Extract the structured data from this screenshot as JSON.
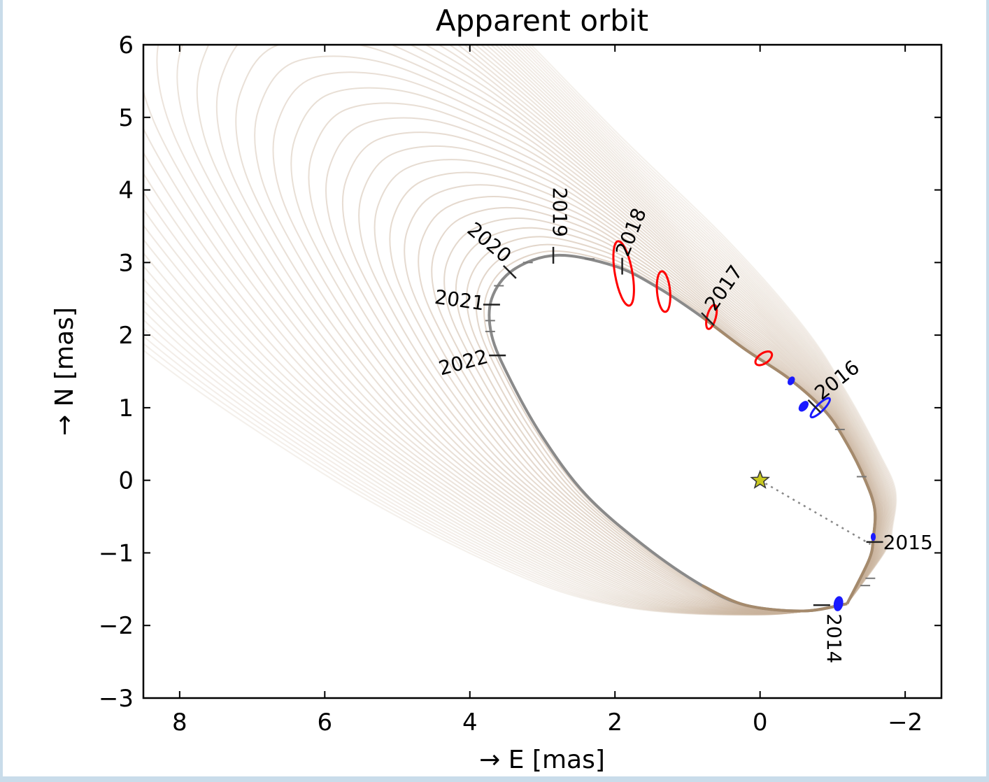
{
  "chart_data": {
    "type": "line",
    "title": "Apparent orbit",
    "xlabel": "→ E [mas]",
    "ylabel": "→ N [mas]",
    "xlim": [
      8.5,
      -2.5
    ],
    "ylim": [
      -3,
      6
    ],
    "x_reversed": true,
    "xticks": [
      {
        "value": 8,
        "label": "8"
      },
      {
        "value": 6,
        "label": "6"
      },
      {
        "value": 4,
        "label": "4"
      },
      {
        "value": 2,
        "label": "2"
      },
      {
        "value": 0,
        "label": "0"
      },
      {
        "value": -2,
        "label": "−2"
      }
    ],
    "yticks": [
      {
        "value": 6,
        "label": "6"
      },
      {
        "value": 5,
        "label": "5"
      },
      {
        "value": 4,
        "label": "4"
      },
      {
        "value": 3,
        "label": "3"
      },
      {
        "value": 2,
        "label": "2"
      },
      {
        "value": 1,
        "label": "1"
      },
      {
        "value": 0,
        "label": "0"
      },
      {
        "value": -1,
        "label": "−1"
      },
      {
        "value": -2,
        "label": "−2"
      },
      {
        "value": -3,
        "label": "−3"
      }
    ],
    "grid": false,
    "best_orbit": {
      "color": "#8a8a8a",
      "future_color": "#a58a6c",
      "points": [
        [
          -1.2,
          -1.7
        ],
        [
          -1.5,
          -1.1
        ],
        [
          -1.56,
          -0.8
        ],
        [
          -1.58,
          -0.4
        ],
        [
          -1.45,
          0.0
        ],
        [
          -1.2,
          0.5
        ],
        [
          -0.9,
          0.95
        ],
        [
          -0.4,
          1.4
        ],
        [
          0.2,
          1.8
        ],
        [
          0.8,
          2.25
        ],
        [
          1.4,
          2.65
        ],
        [
          2.0,
          2.95
        ],
        [
          2.8,
          3.1
        ],
        [
          3.4,
          2.9
        ],
        [
          3.7,
          2.5
        ],
        [
          3.7,
          2.0
        ],
        [
          3.45,
          1.4
        ],
        [
          3.0,
          0.6
        ],
        [
          2.4,
          -0.2
        ],
        [
          1.6,
          -0.9
        ],
        [
          0.8,
          -1.45
        ],
        [
          0.2,
          -1.72
        ],
        [
          -0.6,
          -1.8
        ],
        [
          -1.2,
          -1.7
        ]
      ]
    },
    "orbit_family_color": "#c9b29c",
    "epoch_labels": [
      {
        "year": "2014",
        "x": -0.85,
        "y": -1.72
      },
      {
        "year": "2015",
        "x": -1.58,
        "y": -0.85
      },
      {
        "year": "2016",
        "x": -0.75,
        "y": 1.02
      },
      {
        "year": "2017",
        "x": 0.72,
        "y": 2.22
      },
      {
        "year": "2018",
        "x": 1.9,
        "y": 2.95
      },
      {
        "year": "2019",
        "x": 2.85,
        "y": 3.1
      },
      {
        "year": "2020",
        "x": 3.45,
        "y": 2.87
      },
      {
        "year": "2021",
        "x": 3.7,
        "y": 2.42
      },
      {
        "year": "2022",
        "x": 3.62,
        "y": 1.72
      }
    ],
    "minor_epoch_ticks": [
      [
        -1.52,
        -1.35
      ],
      [
        -1.4,
        0.05
      ],
      [
        -1.1,
        0.7
      ],
      [
        2.35,
        3.05
      ],
      [
        3.2,
        3.0
      ],
      [
        3.6,
        2.68
      ],
      [
        3.72,
        2.2
      ],
      [
        3.72,
        2.05
      ],
      [
        -1.45,
        -1.45
      ]
    ],
    "red_ellipses": [
      {
        "x": 1.88,
        "y": 2.85,
        "rx": 0.12,
        "ry": 0.45,
        "rotate": -10
      },
      {
        "x": 1.33,
        "y": 2.6,
        "rx": 0.09,
        "ry": 0.28,
        "rotate": -5
      },
      {
        "x": 0.67,
        "y": 2.25,
        "rx": 0.06,
        "ry": 0.17,
        "rotate": 15
      },
      {
        "x": -0.05,
        "y": 1.68,
        "rx": 0.07,
        "ry": 0.13,
        "rotate": 55
      }
    ],
    "blue_ellipses": [
      {
        "x": -0.43,
        "y": 1.37,
        "rx": 0.03,
        "ry": 0.05,
        "rotate": 30
      },
      {
        "x": -0.6,
        "y": 1.02,
        "rx": 0.04,
        "ry": 0.07,
        "rotate": 40
      },
      {
        "x": -0.83,
        "y": 1.0,
        "rx": 0.05,
        "ry": 0.18,
        "rotate": 45
      },
      {
        "x": -1.08,
        "y": -1.7,
        "rx": 0.05,
        "ry": 0.09,
        "rotate": 10
      },
      {
        "x": -1.56,
        "y": -0.78,
        "rx": 0.02,
        "ry": 0.04,
        "rotate": 0
      }
    ],
    "star": {
      "x": 0.0,
      "y": 0.0,
      "color": "#c8c820"
    },
    "periastron_line_end": {
      "x": -1.52,
      "y": -0.88
    }
  }
}
